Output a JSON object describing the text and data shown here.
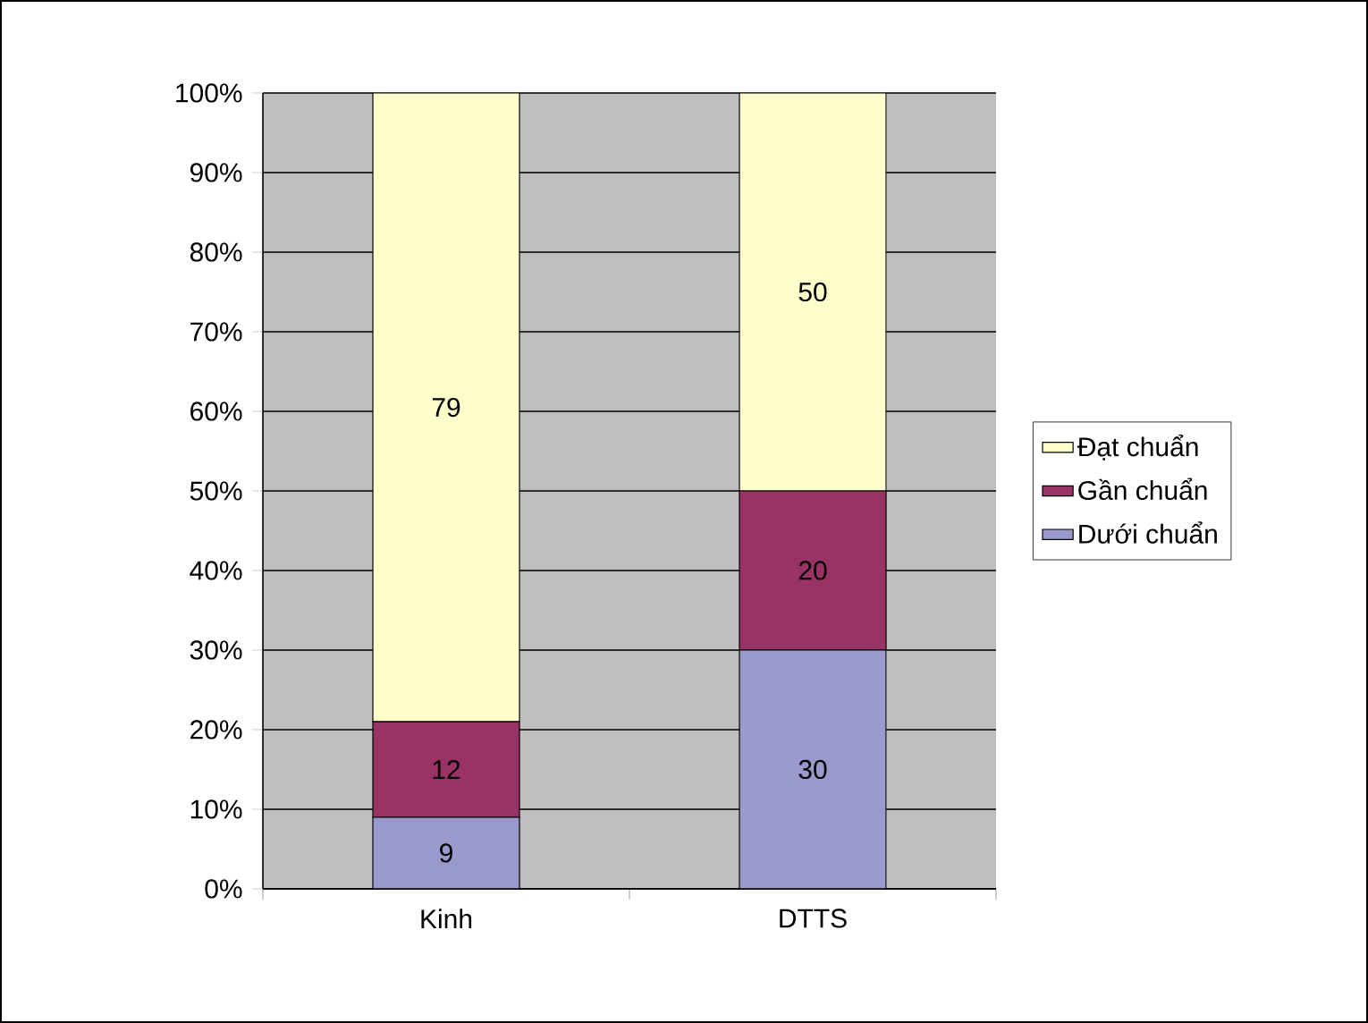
{
  "chart_data": {
    "type": "bar",
    "stacked": true,
    "categories": [
      "Kinh",
      "DTTS"
    ],
    "series": [
      {
        "name": "Dưới chuẩn",
        "color": "#9999cc",
        "values": [
          9,
          30
        ]
      },
      {
        "name": "Gần chuẩn",
        "color": "#993366",
        "values": [
          12,
          20
        ]
      },
      {
        "name": "Đạt chuẩn",
        "color": "#ffffcc",
        "values": [
          79,
          50
        ]
      }
    ],
    "ylim": [
      0,
      100
    ],
    "yticks": [
      {
        "value": 0,
        "label": "0%"
      },
      {
        "value": 10,
        "label": "10%"
      },
      {
        "value": 20,
        "label": "20%"
      },
      {
        "value": 30,
        "label": "30%"
      },
      {
        "value": 40,
        "label": "40%"
      },
      {
        "value": 50,
        "label": "50%"
      },
      {
        "value": 60,
        "label": "60%"
      },
      {
        "value": 70,
        "label": "70%"
      },
      {
        "value": 80,
        "label": "80%"
      },
      {
        "value": 90,
        "label": "90%"
      },
      {
        "value": 100,
        "label": "100%"
      }
    ],
    "grid": "y",
    "legend": "right",
    "data_labels": true
  }
}
